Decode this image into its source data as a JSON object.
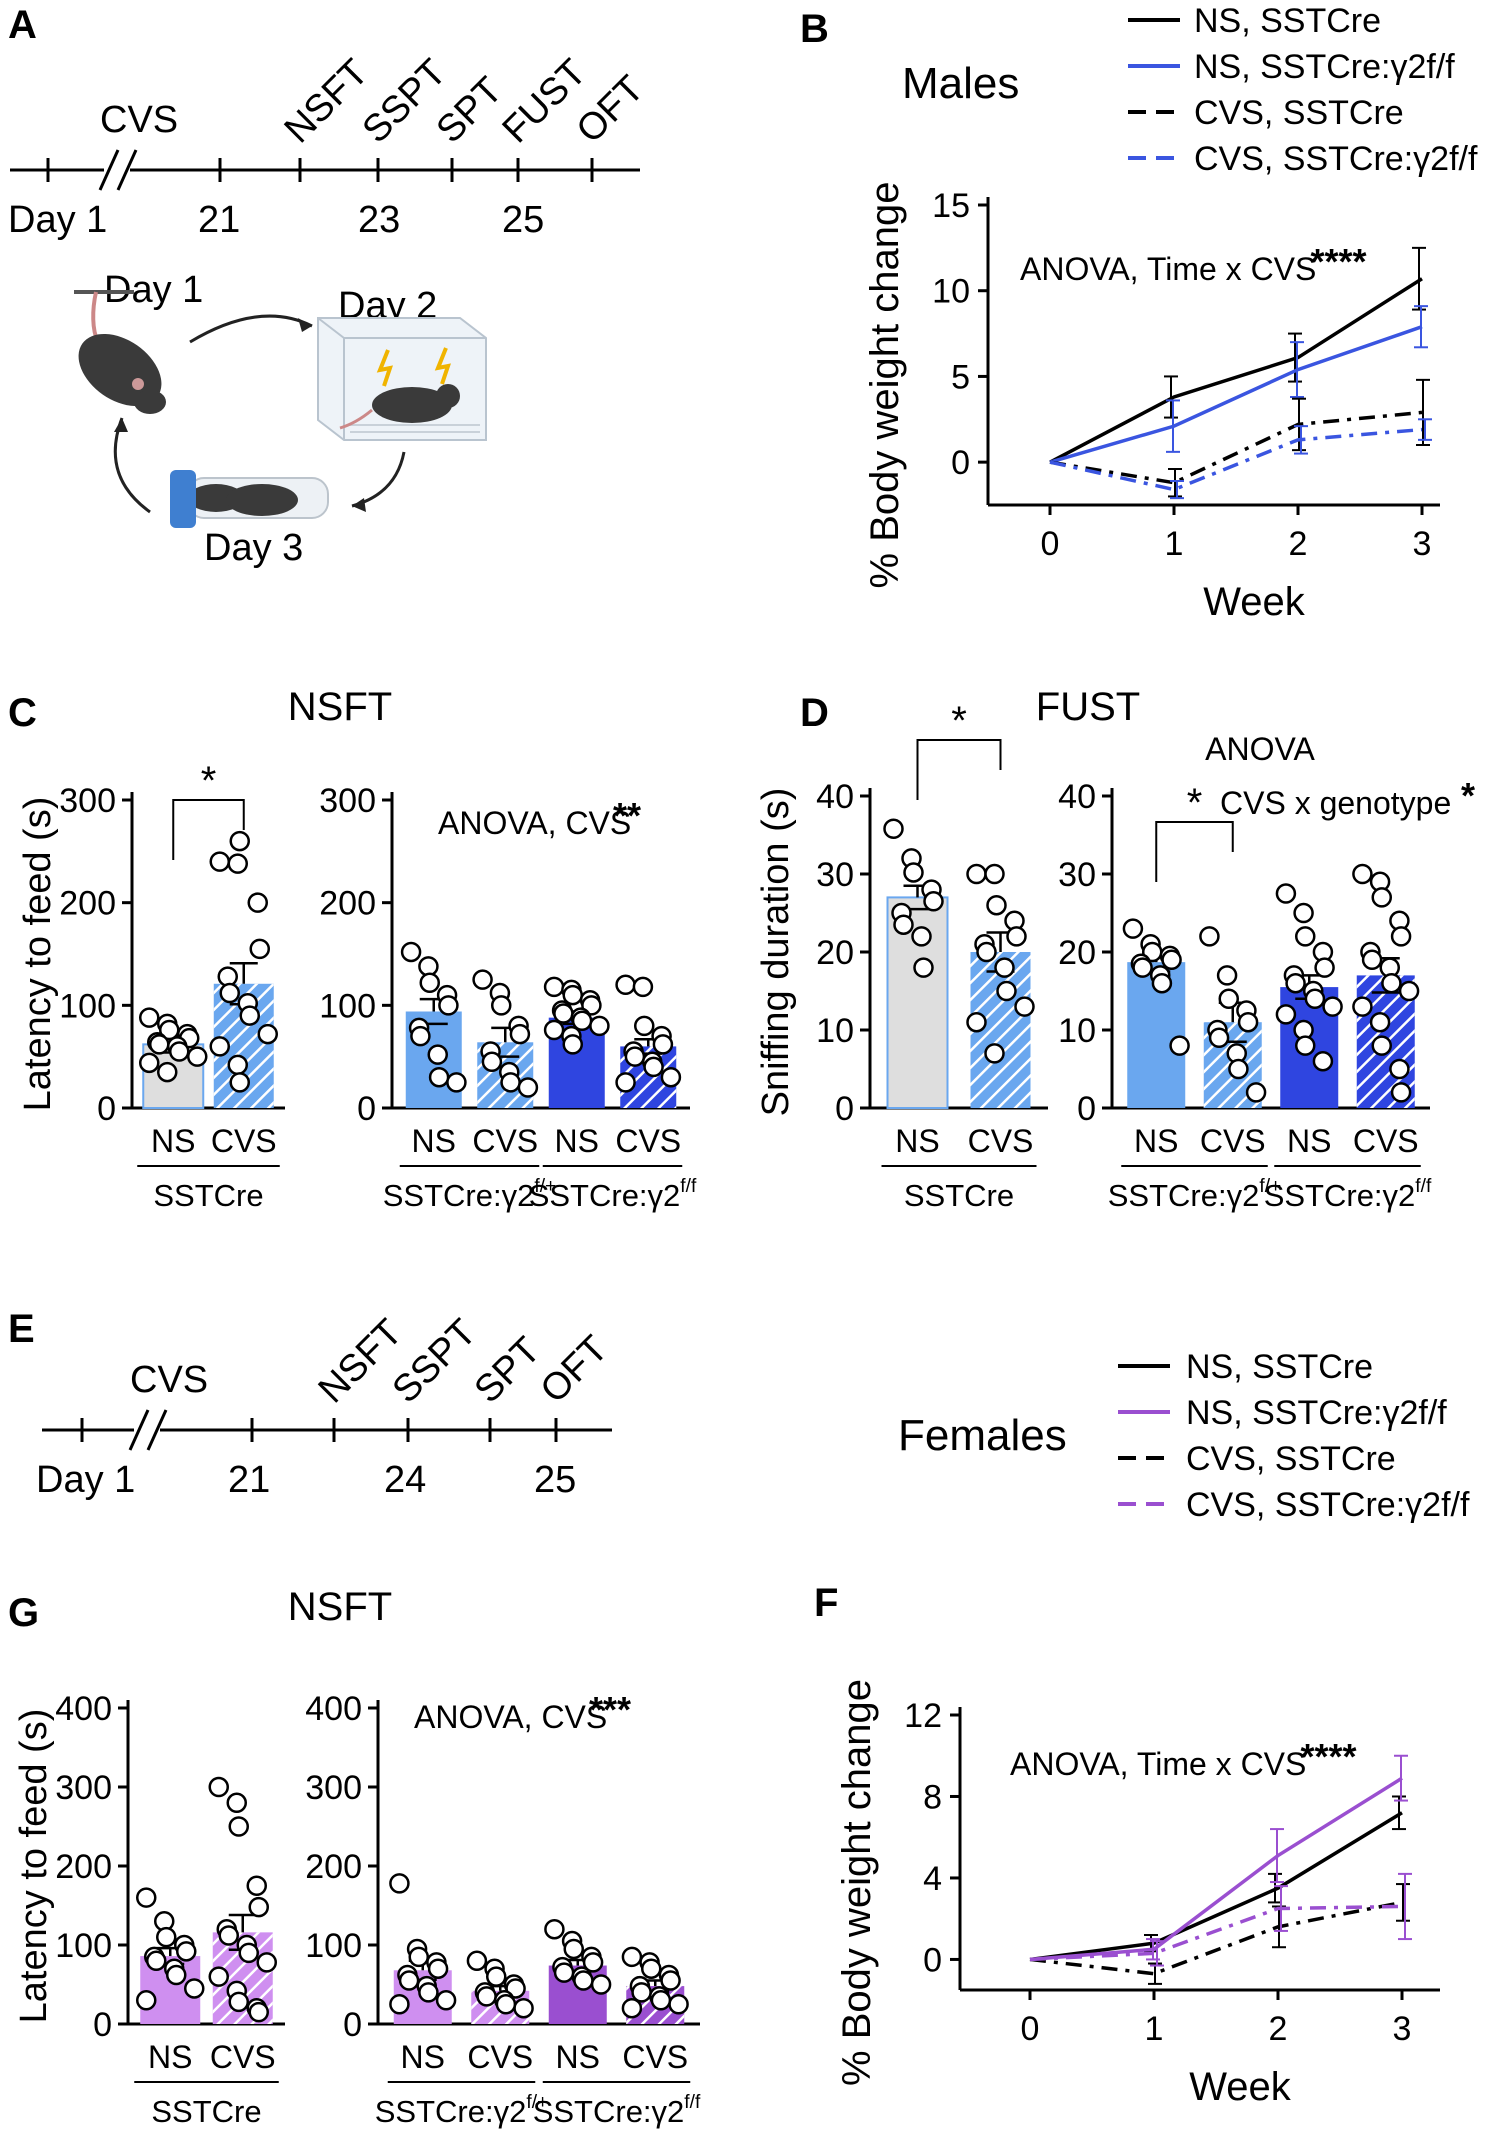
{
  "colors": {
    "black": "#000000",
    "male_blue": "#3a55e0",
    "female_purple": "#9a4fd0",
    "grey_bar": "#dedede",
    "light_blue_bar": "#6aa7ef",
    "dark_blue_bar": "#2f45e0",
    "light_purple_bar": "#cf8ff0",
    "dark_purple_bar": "#9a4fd0"
  },
  "panelA": {
    "label": "A",
    "timeline_label": "CVS",
    "day_labels": [
      "Day 1",
      "21",
      "23",
      "25"
    ],
    "tests": [
      "NSFT",
      "SSPT",
      "SPT",
      "FUST",
      "OFT"
    ],
    "cycle_days": [
      "Day 1",
      "Day 2",
      "Day 3"
    ]
  },
  "panelE": {
    "label": "E",
    "timeline_label": "CVS",
    "day_labels": [
      "Day 1",
      "21",
      "24",
      "25"
    ],
    "tests": [
      "NSFT",
      "SSPT",
      "SPT",
      "OFT"
    ]
  },
  "legend_male": {
    "title": "Males",
    "items": [
      "NS, SSTCre",
      "NS, SSTCre:γ2f/f",
      "CVS, SSTCre",
      "CVS, SSTCre:γ2f/f"
    ]
  },
  "legend_female": {
    "title": "Females",
    "items": [
      "NS, SSTCre",
      "NS, SSTCre:γ2f/f",
      "CVS, SSTCre",
      "CVS, SSTCre:γ2f/f"
    ]
  },
  "chart_data": [
    {
      "id": "B",
      "label": "B",
      "type": "line",
      "xlabel": "Week",
      "ylabel": "% Body weight change",
      "xticks": [
        0,
        1,
        2,
        3
      ],
      "yticks": [
        0,
        5,
        10,
        15
      ],
      "ylim": [
        -2.5,
        15
      ],
      "annotation": "ANOVA, Time x CVS",
      "stars": "****",
      "x": [
        0,
        1,
        2,
        3
      ],
      "series": [
        {
          "name": "NS, SSTCre",
          "color": "#000000",
          "dash": "solid",
          "values": [
            0,
            3.8,
            6.1,
            10.7
          ],
          "err": [
            0,
            1.2,
            1.4,
            1.8
          ]
        },
        {
          "name": "NS, SSTCre:γ2f/f",
          "color": "#3a55e0",
          "dash": "solid",
          "values": [
            0,
            2.1,
            5.4,
            7.9
          ],
          "err": [
            0,
            1.5,
            1.6,
            1.2
          ]
        },
        {
          "name": "CVS, SSTCre",
          "color": "#000000",
          "dash": "dashdot",
          "values": [
            0,
            -1.2,
            2.2,
            2.9
          ],
          "err": [
            0,
            0.8,
            1.5,
            1.9
          ]
        },
        {
          "name": "CVS, SSTCre:γ2f/f",
          "color": "#3a55e0",
          "dash": "dashdot",
          "values": [
            0,
            -1.6,
            1.3,
            1.9
          ],
          "err": [
            0,
            0.5,
            0.8,
            0.6
          ]
        }
      ]
    },
    {
      "id": "C1",
      "label": "C",
      "type": "bar",
      "title": "NSFT",
      "ylabel": "Latency to feed (s)",
      "yticks": [
        0,
        100,
        200,
        300
      ],
      "ylim": [
        0,
        300
      ],
      "categories": [
        "NS",
        "CVS"
      ],
      "groups": [
        "SSTCre"
      ],
      "values": [
        62,
        121
      ],
      "err": [
        8,
        20
      ],
      "colors": [
        "#dedede",
        "#6aa7ef"
      ],
      "hatch": [
        false,
        true
      ],
      "edge": "#6aa7ef",
      "points": [
        [
          88,
          82,
          76,
          72,
          68,
          64,
          62,
          60,
          55,
          50,
          44,
          35
        ],
        [
          240,
          238,
          260,
          200,
          155,
          128,
          112,
          102,
          90,
          72,
          60,
          42,
          25
        ]
      ],
      "sig": {
        "between": [
          0,
          1
        ],
        "stars": "*"
      }
    },
    {
      "id": "C2",
      "type": "bar",
      "ylabel": "",
      "yticks": [
        0,
        100,
        200,
        300
      ],
      "ylim": [
        0,
        300
      ],
      "annotation": "ANOVA, CVS",
      "stars": "**",
      "categories": [
        "NS",
        "CVS",
        "NS",
        "CVS"
      ],
      "groups": [
        "SSTCre:γ2f/+",
        "SSTCre:γ2f/f"
      ],
      "values": [
        94,
        64,
        88,
        60
      ],
      "err": [
        12,
        14,
        6,
        7
      ],
      "colors": [
        "#6aa7ef",
        "#6aa7ef",
        "#2f45e0",
        "#2f45e0"
      ],
      "hatch": [
        false,
        true,
        false,
        true
      ],
      "edge": "#2f45e0",
      "points": [
        [
          152,
          138,
          122,
          110,
          100,
          78,
          70,
          52,
          30,
          25
        ],
        [
          125,
          112,
          100,
          80,
          72,
          55,
          45,
          35,
          25,
          20
        ],
        [
          118,
          115,
          110,
          105,
          100,
          95,
          92,
          88,
          85,
          80,
          76,
          70,
          62
        ],
        [
          120,
          118,
          80,
          70,
          62,
          55,
          50,
          45,
          40,
          30,
          25
        ]
      ]
    },
    {
      "id": "D1",
      "label": "D",
      "type": "bar",
      "title": "FUST",
      "ylabel": "Sniffing duration (s)",
      "yticks": [
        0,
        10,
        20,
        30,
        40
      ],
      "ylim": [
        0,
        40
      ],
      "categories": [
        "NS",
        "CVS"
      ],
      "groups": [
        "SSTCre"
      ],
      "values": [
        27,
        20
      ],
      "err": [
        1.5,
        2.5
      ],
      "colors": [
        "#dedede",
        "#6aa7ef"
      ],
      "hatch": [
        false,
        true
      ],
      "edge": "#6aa7ef",
      "points": [
        [
          35.8,
          32,
          30.2,
          28,
          26.5,
          25,
          23.5,
          22,
          18
        ],
        [
          30,
          30,
          26,
          24,
          22,
          21,
          20,
          18,
          15,
          13,
          11,
          7
        ]
      ],
      "sig": {
        "between": [
          0,
          1
        ],
        "stars": "*"
      }
    },
    {
      "id": "D2",
      "type": "bar",
      "title": "ANOVA",
      "annotation": "CVS x genotype",
      "stars": "*",
      "ylabel": "",
      "yticks": [
        0,
        10,
        20,
        30,
        40
      ],
      "ylim": [
        0,
        40
      ],
      "categories": [
        "NS",
        "CVS",
        "NS",
        "CVS"
      ],
      "groups": [
        "SSTCre:γ2f/+",
        "SSTCre:γ2f/f"
      ],
      "values": [
        18.7,
        11,
        15.5,
        17
      ],
      "err": [
        1.2,
        2.5,
        1.5,
        2.2
      ],
      "colors": [
        "#6aa7ef",
        "#6aa7ef",
        "#2f45e0",
        "#2f45e0"
      ],
      "hatch": [
        false,
        true,
        false,
        true
      ],
      "edge": "#2f45e0",
      "points": [
        [
          23,
          21,
          20,
          19.5,
          19,
          18.5,
          18,
          17,
          16,
          8
        ],
        [
          22,
          17,
          14,
          12.5,
          11,
          10,
          9,
          7,
          5,
          2
        ],
        [
          27.5,
          25,
          22,
          20,
          18,
          17,
          16,
          15,
          14,
          13,
          12,
          10,
          8,
          6
        ],
        [
          30,
          29,
          27,
          24,
          22,
          20,
          19,
          18,
          16,
          15,
          13,
          11,
          8,
          5,
          2
        ]
      ],
      "sig": {
        "between": [
          0,
          1
        ],
        "stars": "*"
      }
    },
    {
      "id": "G1",
      "label": "G",
      "type": "bar",
      "title": "NSFT",
      "ylabel": "Latency to feed (s)",
      "yticks": [
        0,
        100,
        200,
        300,
        400
      ],
      "ylim": [
        0,
        400
      ],
      "categories": [
        "NS",
        "CVS"
      ],
      "groups": [
        "SSTCre"
      ],
      "values": [
        86,
        116
      ],
      "err": [
        10,
        22
      ],
      "colors": [
        "#cf8ff0",
        "#cf8ff0"
      ],
      "hatch": [
        false,
        true
      ],
      "edge": "#9a4fd0",
      "points": [
        [
          160,
          130,
          110,
          100,
          92,
          85,
          80,
          70,
          62,
          45,
          30
        ],
        [
          300,
          280,
          250,
          175,
          148,
          120,
          112,
          100,
          90,
          78,
          60,
          42,
          28,
          20,
          15
        ]
      ]
    },
    {
      "id": "G2",
      "type": "bar",
      "ylabel": "",
      "yticks": [
        0,
        100,
        200,
        300,
        400
      ],
      "ylim": [
        0,
        400
      ],
      "annotation": "ANOVA, CVS",
      "stars": "***",
      "categories": [
        "NS",
        "CVS",
        "NS",
        "CVS"
      ],
      "groups": [
        "SSTCre:γ2f/+",
        "SSTCre:γ2f/f"
      ],
      "values": [
        68,
        42,
        74,
        48
      ],
      "err": [
        12,
        6,
        7,
        7
      ],
      "colors": [
        "#cf8ff0",
        "#cf8ff0",
        "#9a4fd0",
        "#9a4fd0"
      ],
      "hatch": [
        false,
        true,
        false,
        true
      ],
      "edge": "#9a4fd0",
      "points": [
        [
          178,
          95,
          85,
          78,
          70,
          62,
          55,
          48,
          40,
          30,
          25
        ],
        [
          80,
          70,
          60,
          50,
          45,
          40,
          35,
          30,
          25,
          20
        ],
        [
          120,
          105,
          95,
          85,
          78,
          72,
          65,
          60,
          55,
          50
        ],
        [
          85,
          78,
          70,
          62,
          55,
          48,
          40,
          35,
          30,
          25,
          20
        ]
      ]
    },
    {
      "id": "F",
      "label": "F",
      "type": "line",
      "xlabel": "Week",
      "ylabel": "% Body weight change",
      "xticks": [
        0,
        1,
        2,
        3
      ],
      "yticks": [
        0,
        4,
        8,
        12
      ],
      "ylim": [
        -1.5,
        12
      ],
      "annotation": "ANOVA, Time x CVS",
      "stars": "****",
      "x": [
        0,
        1,
        2,
        3
      ],
      "series": [
        {
          "name": "NS, SSTCre",
          "color": "#000000",
          "dash": "solid",
          "values": [
            0,
            0.8,
            3.5,
            7.2
          ],
          "err": [
            0,
            0.4,
            0.7,
            0.8
          ]
        },
        {
          "name": "NS, SSTCre:γ2f/f",
          "color": "#9a4fd0",
          "dash": "solid",
          "values": [
            0,
            0.5,
            5.1,
            8.9
          ],
          "err": [
            0,
            0.5,
            1.3,
            1.1
          ]
        },
        {
          "name": "CVS, SSTCre",
          "color": "#000000",
          "dash": "dashdot",
          "values": [
            0,
            -0.7,
            1.6,
            2.8
          ],
          "err": [
            0,
            0.5,
            1.0,
            0.9
          ]
        },
        {
          "name": "CVS, SSTCre:γ2f/f",
          "color": "#9a4fd0",
          "dash": "dashdot",
          "values": [
            0,
            0.3,
            2.5,
            2.6
          ],
          "err": [
            0,
            0.6,
            1.1,
            1.6
          ]
        }
      ]
    }
  ]
}
